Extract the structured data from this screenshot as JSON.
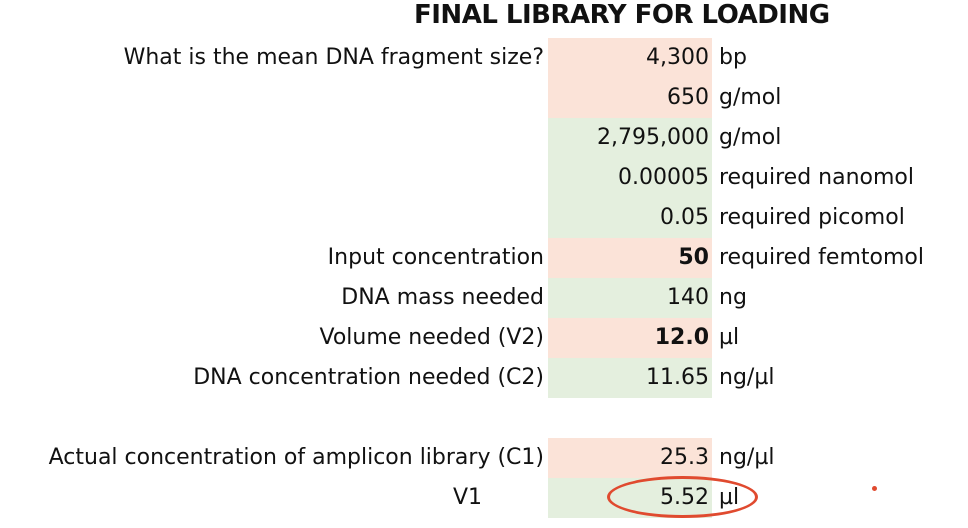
{
  "title": "FINAL LIBRARY FOR LOADING",
  "rows": [
    {
      "label": "What is the mean DNA fragment size?",
      "value": "4,300",
      "unit": "bp",
      "fill": "peach"
    },
    {
      "label": "",
      "value": "650",
      "unit": "g/mol",
      "fill": "peach"
    },
    {
      "label": "",
      "value": "2,795,000",
      "unit": "g/mol",
      "fill": "green"
    },
    {
      "label": "",
      "value": "0.00005",
      "unit": "required nanomol",
      "fill": "green"
    },
    {
      "label": "",
      "value": "0.05",
      "unit": "required picomol",
      "fill": "green"
    },
    {
      "label": "Input concentration",
      "value": "50",
      "unit": "required femtomol",
      "fill": "peach",
      "bold": true
    },
    {
      "label": "DNA mass needed",
      "value": "140",
      "unit": "ng",
      "fill": "green"
    },
    {
      "label": "Volume needed (V2)",
      "value": "12.0",
      "unit": "µl",
      "fill": "peach",
      "bold": true
    },
    {
      "label": "DNA concentration needed (C2)",
      "value": "11.65",
      "unit": "ng/µl",
      "fill": "green"
    },
    {
      "label": "Actual concentration of amplicon library (C1)",
      "value": "25.3",
      "unit": "ng/µl",
      "fill": "peach"
    },
    {
      "label": "V1",
      "value": "5.52",
      "unit": "µl",
      "fill": "green",
      "highlighted": true
    }
  ],
  "colors": {
    "peach": "#fbe3d8",
    "green": "#e4efde",
    "highlight": "#e04a2f"
  }
}
